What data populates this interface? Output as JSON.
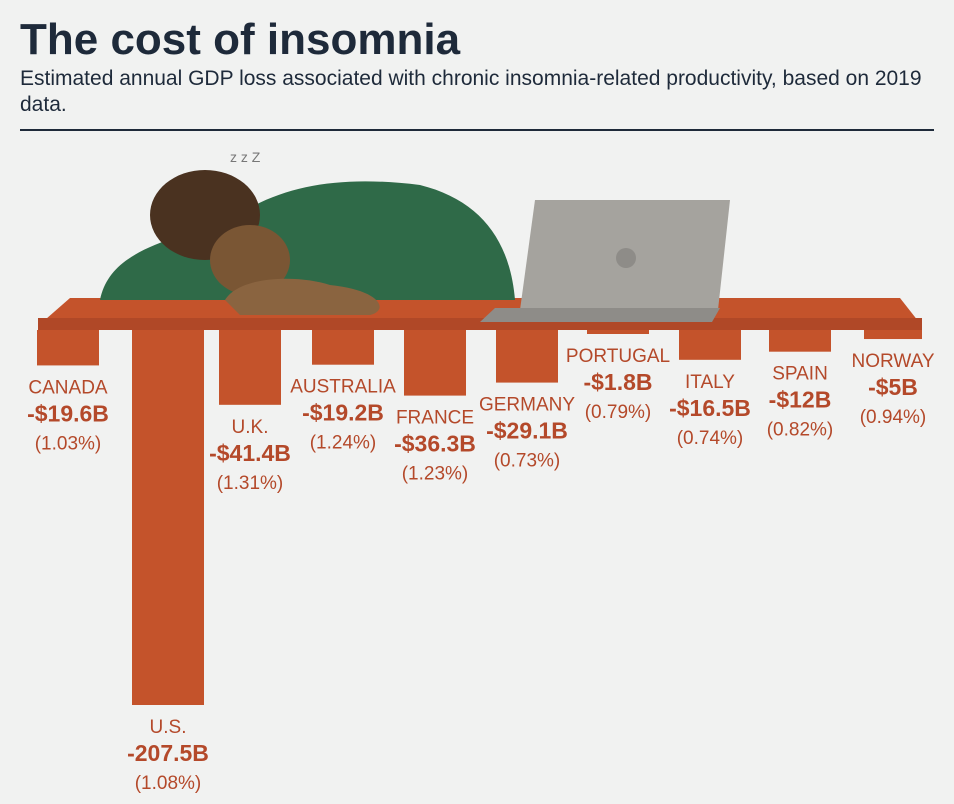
{
  "chart_data": {
    "type": "bar",
    "title": "The cost of insomnia",
    "subtitle": "Estimated annual GDP loss associated with chronic insomnia-related productivity, based on 2019 data.",
    "categories": [
      "CANADA",
      "U.S.",
      "U.K.",
      "AUSTRALIA",
      "FRANCE",
      "GERMANY",
      "PORTUGAL",
      "ITALY",
      "SPAIN",
      "NORWAY"
    ],
    "values": [
      -19.6,
      -207.5,
      -41.4,
      -19.2,
      -36.3,
      -29.1,
      -1.8,
      -16.5,
      -12,
      -5
    ],
    "value_labels": [
      "-$19.6B",
      "-207.5B",
      "-$41.4B",
      "-$19.2B",
      "-$36.3B",
      "-$29.1B",
      "-$1.8B",
      "-$16.5B",
      "-$12B",
      "-$5B"
    ],
    "share_labels": [
      "(1.03%)",
      "(1.08%)",
      "(1.31%)",
      "(1.24%)",
      "(1.23%)",
      "(0.73%)",
      "(0.79%)",
      "(0.74%)",
      "(0.82%)",
      "(0.94%)"
    ],
    "color": "#c4532b"
  }
}
